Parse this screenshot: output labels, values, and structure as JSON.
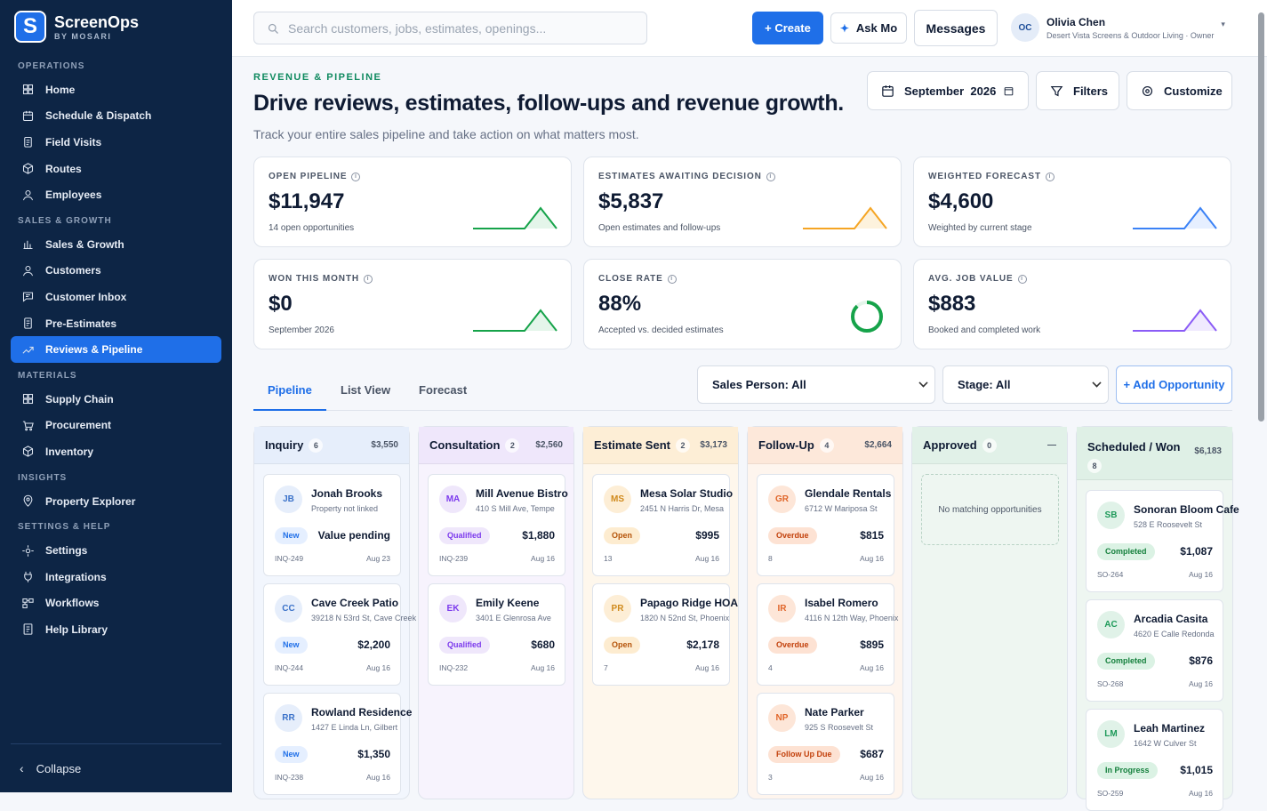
{
  "brand": {
    "name": "ScreenOps",
    "sub": "BY MOSARI",
    "logo_letter": "S"
  },
  "sidebar": {
    "sections": [
      {
        "title": "OPERATIONS",
        "items": [
          {
            "label": "Home",
            "icon": "grid-icon"
          },
          {
            "label": "Schedule & Dispatch",
            "icon": "calendar-icon"
          },
          {
            "label": "Field Visits",
            "icon": "clipboard-icon"
          },
          {
            "label": "Routes",
            "icon": "cube-icon"
          },
          {
            "label": "Employees",
            "icon": "user-icon"
          }
        ]
      },
      {
        "title": "SALES & GROWTH",
        "items": [
          {
            "label": "Sales & Growth",
            "icon": "bar-chart-icon"
          },
          {
            "label": "Customers",
            "icon": "user-icon"
          },
          {
            "label": "Customer Inbox",
            "icon": "message-icon"
          },
          {
            "label": "Pre-Estimates",
            "icon": "document-icon"
          },
          {
            "label": "Reviews & Pipeline",
            "icon": "trend-icon",
            "active": true
          }
        ]
      },
      {
        "title": "MATERIALS",
        "items": [
          {
            "label": "Supply Chain",
            "icon": "grid-icon"
          },
          {
            "label": "Procurement",
            "icon": "cart-icon"
          },
          {
            "label": "Inventory",
            "icon": "cube-icon"
          }
        ]
      },
      {
        "title": "INSIGHTS",
        "items": [
          {
            "label": "Property Explorer",
            "icon": "pin-icon"
          }
        ]
      },
      {
        "title": "SETTINGS & HELP",
        "items": [
          {
            "label": "Settings",
            "icon": "gear-icon"
          },
          {
            "label": "Integrations",
            "icon": "plug-icon"
          },
          {
            "label": "Workflows",
            "icon": "workflow-icon"
          },
          {
            "label": "Help Library",
            "icon": "book-icon"
          }
        ]
      }
    ],
    "collapse_label": "Collapse"
  },
  "topbar": {
    "search_placeholder": "Search customers, jobs, estimates, openings...",
    "create_label": "+ Create",
    "ask_label": "Ask Mo",
    "messages_label": "Messages",
    "user": {
      "initials": "OC",
      "name": "Olivia Chen",
      "sub": "Desert Vista Screens & Outdoor Living · Owner"
    }
  },
  "header": {
    "eyebrow": "REVENUE & PIPELINE",
    "title": "Drive reviews, estimates, follow-ups and revenue growth.",
    "subtitle": "Track your entire sales pipeline and take action on what matters most.",
    "month_label": "September  2026",
    "filters_label": "Filters",
    "customize_label": "Customize"
  },
  "kpis": [
    {
      "label": "OPEN PIPELINE",
      "value": "$11,947",
      "sub": "14 open opportunities",
      "color": "#16a34a",
      "fill": "#e4f5ea",
      "kind": "spark"
    },
    {
      "label": "ESTIMATES AWAITING DECISION",
      "value": "$5,837",
      "sub": "Open estimates and follow-ups",
      "color": "#f5a524",
      "fill": "#fdf2dd",
      "kind": "spark"
    },
    {
      "label": "WEIGHTED FORECAST",
      "value": "$4,600",
      "sub": "Weighted by current stage",
      "color": "#3b82f6",
      "fill": "#e6efff",
      "kind": "spark"
    },
    {
      "label": "WON THIS MONTH",
      "value": "$0",
      "sub": "September 2026",
      "color": "#16a34a",
      "fill": "#e4f5ea",
      "kind": "spark"
    },
    {
      "label": "CLOSE RATE",
      "value": "88%",
      "sub": "Accepted vs. decided estimates",
      "color": "#16a34a",
      "fill": "#e4f5ea",
      "kind": "ring",
      "ratio": 0.88
    },
    {
      "label": "AVG. JOB VALUE",
      "value": "$883",
      "sub": "Booked and completed work",
      "color": "#8b5cf6",
      "fill": "#f0eafe",
      "kind": "spark"
    }
  ],
  "tabs": [
    {
      "label": "Pipeline",
      "active": true
    },
    {
      "label": "List View"
    },
    {
      "label": "Forecast"
    }
  ],
  "filters": {
    "sales_person": "Sales Person: All",
    "stage": "Stage: All",
    "add_label": "+ Add Opportunity"
  },
  "columns": [
    {
      "name": "Inquiry",
      "count": "6",
      "total": "$3,550",
      "bg": "#f2f6fd",
      "head": "#e6eefb",
      "cards": [
        {
          "initials": "JB",
          "name": "Jonah Brooks",
          "address": "Property not linked",
          "badge": "New",
          "amount": "Value pending",
          "id": "INQ-249",
          "date": "Aug 23"
        },
        {
          "initials": "CC",
          "name": "Cave Creek Patio",
          "address": "39218 N 53rd St, Cave Creek",
          "badge": "New",
          "amount": "$2,200",
          "id": "INQ-244",
          "date": "Aug 16"
        },
        {
          "initials": "RR",
          "name": "Rowland Residence",
          "address": "1427 E Linda Ln, Gilbert",
          "badge": "New",
          "amount": "$1,350",
          "id": "INQ-238",
          "date": "Aug 16"
        }
      ]
    },
    {
      "name": "Consultation",
      "count": "2",
      "total": "$2,560",
      "bg": "#f7f3fd",
      "head": "#efe7fb",
      "cards": [
        {
          "initials": "MA",
          "name": "Mill Avenue Bistro",
          "address": "410 S Mill Ave, Tempe",
          "badge": "Qualified",
          "amount": "$1,880",
          "id": "INQ-239",
          "date": "Aug 16"
        },
        {
          "initials": "EK",
          "name": "Emily Keene",
          "address": "3401 E Glenrosa Ave",
          "badge": "Qualified",
          "amount": "$680",
          "id": "INQ-232",
          "date": "Aug 16"
        }
      ]
    },
    {
      "name": "Estimate Sent",
      "count": "2",
      "total": "$3,173",
      "bg": "#fef7ec",
      "head": "#fdeed6",
      "cards": [
        {
          "initials": "MS",
          "name": "Mesa Solar Studio",
          "address": "2451 N Harris Dr, Mesa",
          "badge": "Open",
          "amount": "$995",
          "id": "13",
          "date": "Aug 16"
        },
        {
          "initials": "PR",
          "name": "Papago Ridge HOA",
          "address": "1820 N 52nd St, Phoenix",
          "badge": "Open",
          "amount": "$2,178",
          "id": "7",
          "date": "Aug 16"
        }
      ]
    },
    {
      "name": "Follow-Up",
      "count": "4",
      "total": "$2,664",
      "bg": "#fef5ee",
      "head": "#fde8da",
      "cards": [
        {
          "initials": "GR",
          "name": "Glendale Rentals",
          "address": "6712 W Mariposa St",
          "badge": "Overdue",
          "amount": "$815",
          "id": "8",
          "date": "Aug 16"
        },
        {
          "initials": "IR",
          "name": "Isabel Romero",
          "address": "4116 N 12th Way, Phoenix",
          "badge": "Overdue",
          "amount": "$895",
          "id": "4",
          "date": "Aug 16"
        },
        {
          "initials": "NP",
          "name": "Nate Parker",
          "address": "925 S Roosevelt St",
          "badge": "Follow Up Due",
          "amount": "$687",
          "id": "3",
          "date": "Aug 16"
        }
      ]
    },
    {
      "name": "Approved",
      "count": "0",
      "total": "—",
      "bg": "#eef6f1",
      "head": "#e1f1e8",
      "empty": "No matching opportunities",
      "cards": []
    },
    {
      "name": "Scheduled / Won",
      "count": "8",
      "total": "$6,183",
      "bg": "#eef6f1",
      "head": "#dff0e6",
      "cards": [
        {
          "initials": "SB",
          "name": "Sonoran Bloom Cafe",
          "address": "528 E Roosevelt St",
          "badge": "Completed",
          "amount": "$1,087",
          "id": "SO-264",
          "date": "Aug 16"
        },
        {
          "initials": "AC",
          "name": "Arcadia Casita",
          "address": "4620 E Calle Redonda",
          "badge": "Completed",
          "amount": "$876",
          "id": "SO-268",
          "date": "Aug 16"
        },
        {
          "initials": "LM",
          "name": "Leah Martinez",
          "address": "1642 W Culver St",
          "badge": "In Progress",
          "amount": "$1,015",
          "id": "SO-259",
          "date": "Aug 16"
        }
      ]
    }
  ]
}
